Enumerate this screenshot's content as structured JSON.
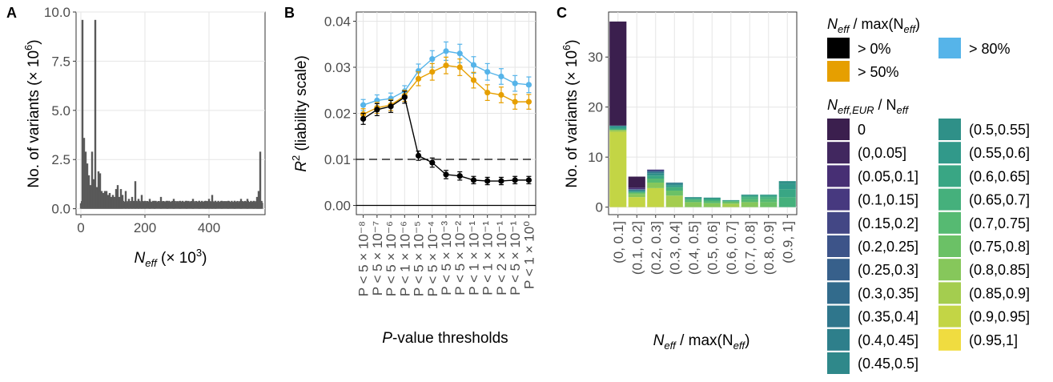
{
  "figure": {
    "panel_labels": [
      "A",
      "B",
      "C"
    ]
  },
  "chart_data": [
    {
      "panel": "A",
      "type": "bar",
      "xlabel_main": "N",
      "xlabel_sub": "eff",
      "xlabel_suffix": " (× 10",
      "xlabel_exp": "3",
      "xlabel_close": ")",
      "ylabel": "No. of variants (× 10",
      "ylabel_exp": "6",
      "ylabel_close": ")",
      "xlim": [
        -15,
        575
      ],
      "ylim": [
        -0.3,
        10.0
      ],
      "x_ticks": [
        0,
        200,
        400
      ],
      "y_ticks": [
        0.0,
        2.5,
        5.0,
        7.5,
        10.0
      ],
      "y_tick_labels": [
        "0.0",
        "2.5",
        "5.0",
        "7.5",
        "10.0"
      ],
      "bar_width": 2.4,
      "color": "#595959",
      "peaks": [
        [
          5,
          9.6
        ],
        [
          10,
          3.6
        ],
        [
          15,
          2.9
        ],
        [
          20,
          2.3
        ],
        [
          25,
          1.7
        ],
        [
          30,
          1.2
        ],
        [
          35,
          2.9
        ],
        [
          40,
          1.5
        ],
        [
          45,
          9.6
        ],
        [
          50,
          1.1
        ],
        [
          55,
          1.9
        ],
        [
          60,
          1.8
        ],
        [
          65,
          0.9
        ],
        [
          70,
          0.8
        ],
        [
          75,
          0.9
        ],
        [
          80,
          0.9
        ],
        [
          85,
          0.7
        ],
        [
          90,
          0.8
        ],
        [
          95,
          0.6
        ],
        [
          100,
          0.7
        ],
        [
          105,
          0.6
        ],
        [
          110,
          1.0
        ],
        [
          115,
          1.2
        ],
        [
          120,
          0.6
        ],
        [
          125,
          1.0
        ],
        [
          130,
          0.7
        ],
        [
          140,
          0.9
        ],
        [
          150,
          0.5
        ],
        [
          160,
          0.6
        ],
        [
          170,
          1.4
        ],
        [
          180,
          0.5
        ],
        [
          190,
          0.7
        ],
        [
          200,
          0.4
        ],
        [
          215,
          0.5
        ],
        [
          230,
          0.4
        ],
        [
          250,
          0.6
        ],
        [
          270,
          0.4
        ],
        [
          290,
          0.5
        ],
        [
          310,
          0.4
        ],
        [
          330,
          0.4
        ],
        [
          350,
          0.5
        ],
        [
          370,
          0.4
        ],
        [
          390,
          0.4
        ],
        [
          400,
          0.5
        ],
        [
          410,
          0.7
        ],
        [
          420,
          0.4
        ],
        [
          440,
          0.4
        ],
        [
          460,
          0.4
        ],
        [
          480,
          0.4
        ],
        [
          500,
          0.5
        ],
        [
          520,
          0.5
        ],
        [
          540,
          0.4
        ],
        [
          550,
          0.6
        ],
        [
          555,
          0.9
        ],
        [
          560,
          2.9
        ],
        [
          566,
          0.3
        ]
      ]
    },
    {
      "panel": "B",
      "type": "line",
      "xlabel_italic": "P",
      "xlabel_rest": "-value thresholds",
      "ylabel_main": "R",
      "ylabel_exp": "2",
      "ylabel_rest": " (liability scale)",
      "ylim": [
        -0.002,
        0.042
      ],
      "y_ticks": [
        0.0,
        0.01,
        0.02,
        0.03,
        0.04
      ],
      "y_tick_labels": [
        "0.00",
        "0.01",
        "0.02",
        "0.03",
        "0.04"
      ],
      "hline": 0.01,
      "categories": [
        "P < 5 × 10⁻⁸",
        "P < 5 × 10⁻⁷",
        "P < 5 × 10⁻⁶",
        "P < 1 × 10⁻⁶",
        "P < 5 × 10⁻⁵",
        "P < 5 × 10⁻⁴",
        "P < 5 × 10⁻³",
        "P < 5 × 10⁻²",
        "P < 1 × 10⁻¹",
        "P < 1 × 10⁻¹",
        "P < 2 × 10⁻¹",
        "P < 5 × 10⁻¹",
        "P < 1 × 10⁰"
      ],
      "series": [
        {
          "color": "#56b4e9",
          "values": [
            0.0218,
            0.0228,
            0.0232,
            0.0248,
            0.0292,
            0.0318,
            0.0335,
            0.033,
            0.0305,
            0.029,
            0.028,
            0.0265,
            0.0262
          ],
          "err": [
            0.0012,
            0.0012,
            0.0012,
            0.0012,
            0.0015,
            0.0018,
            0.002,
            0.002,
            0.0018,
            0.0018,
            0.0017,
            0.0017,
            0.0017
          ]
        },
        {
          "color": "#e69f00",
          "values": [
            0.0198,
            0.0212,
            0.0218,
            0.0238,
            0.0275,
            0.029,
            0.0304,
            0.03,
            0.0272,
            0.0245,
            0.024,
            0.0225,
            0.0225
          ],
          "err": [
            0.0012,
            0.0012,
            0.0012,
            0.0012,
            0.0015,
            0.0018,
            0.0018,
            0.0018,
            0.0017,
            0.0017,
            0.0017,
            0.0016,
            0.0016
          ]
        },
        {
          "color": "#000000",
          "values": [
            0.0188,
            0.0208,
            0.0215,
            0.0235,
            0.0108,
            0.0093,
            0.0067,
            0.0064,
            0.0055,
            0.0053,
            0.0053,
            0.0055,
            0.0055
          ],
          "err": [
            0.0012,
            0.0013,
            0.0013,
            0.0013,
            0.001,
            0.001,
            0.0009,
            0.0009,
            0.0008,
            0.0008,
            0.0008,
            0.0008,
            0.0008
          ]
        }
      ]
    },
    {
      "panel": "C",
      "type": "bar",
      "stacked": true,
      "ylabel": "No. of variants (× 10",
      "ylabel_exp": "6",
      "ylabel_close": ")",
      "xlabel_main": "N",
      "xlabel_sub": "eff",
      "xlabel_rest": " / max(N",
      "xlabel_sub2": "eff",
      "xlabel_close": ")",
      "ylim": [
        -1.5,
        39
      ],
      "y_ticks": [
        0,
        10,
        20,
        30
      ],
      "categories": [
        "(0, 0.1]",
        "(0.1, 0.2]",
        "(0.2, 0.3]",
        "(0.3, 0.4]",
        "(0.4, 0.5]",
        "(0.5, 0.6]",
        "(0.6, 0.7]",
        "(0.7, 0.8]",
        "(0.8, 0.9]",
        "(0.9, 1]"
      ],
      "stacks": [
        [
          {
            "c": 19,
            "v": 15.0
          },
          {
            "c": 18,
            "v": 0.4
          },
          {
            "c": 14,
            "v": 0.3
          },
          {
            "c": 12,
            "v": 0.4
          },
          {
            "c": 10,
            "v": 0.1
          },
          {
            "c": 8,
            "v": 0.1
          },
          {
            "c": 0,
            "v": 20.8
          }
        ],
        [
          {
            "c": 19,
            "v": 2.0
          },
          {
            "c": 17,
            "v": 0.6
          },
          {
            "c": 16,
            "v": 0.3
          },
          {
            "c": 13,
            "v": 0.2
          },
          {
            "c": 11,
            "v": 0.2
          },
          {
            "c": 9,
            "v": 0.1
          },
          {
            "c": 7,
            "v": 0.1
          },
          {
            "c": 5,
            "v": 0.1
          },
          {
            "c": 2,
            "v": 0.3
          },
          {
            "c": 0,
            "v": 2.2
          }
        ],
        [
          {
            "c": 19,
            "v": 3.8
          },
          {
            "c": 17,
            "v": 1.1
          },
          {
            "c": 15,
            "v": 0.8
          },
          {
            "c": 13,
            "v": 0.6
          },
          {
            "c": 11,
            "v": 0.4
          },
          {
            "c": 9,
            "v": 0.3
          },
          {
            "c": 6,
            "v": 0.3
          },
          {
            "c": 3,
            "v": 0.2
          }
        ],
        [
          {
            "c": 18,
            "v": 2.3
          },
          {
            "c": 16,
            "v": 1.0
          },
          {
            "c": 14,
            "v": 0.7
          },
          {
            "c": 12,
            "v": 0.4
          },
          {
            "c": 10,
            "v": 0.3
          },
          {
            "c": 8,
            "v": 0.2
          }
        ],
        [
          {
            "c": 17,
            "v": 1.0
          },
          {
            "c": 15,
            "v": 0.5
          },
          {
            "c": 13,
            "v": 0.3
          },
          {
            "c": 11,
            "v": 0.2
          }
        ],
        [
          {
            "c": 17,
            "v": 0.8
          },
          {
            "c": 15,
            "v": 0.5
          },
          {
            "c": 13,
            "v": 0.4
          },
          {
            "c": 11,
            "v": 0.2
          }
        ],
        [
          {
            "c": 18,
            "v": 0.7
          },
          {
            "c": 16,
            "v": 0.4
          },
          {
            "c": 14,
            "v": 0.2
          },
          {
            "c": 12,
            "v": 0.1
          }
        ],
        [
          {
            "c": 17,
            "v": 1.0
          },
          {
            "c": 15,
            "v": 0.6
          },
          {
            "c": 14,
            "v": 0.4
          },
          {
            "c": 13,
            "v": 0.3
          },
          {
            "c": 11,
            "v": 0.2
          }
        ],
        [
          {
            "c": 16,
            "v": 1.0
          },
          {
            "c": 15,
            "v": 0.6
          },
          {
            "c": 14,
            "v": 0.4
          },
          {
            "c": 13,
            "v": 0.3
          },
          {
            "c": 12,
            "v": 0.2
          }
        ],
        [
          {
            "c": 14,
            "v": 2.0
          },
          {
            "c": 13,
            "v": 1.6
          },
          {
            "c": 12,
            "v": 1.0
          },
          {
            "c": 11,
            "v": 0.6
          }
        ]
      ]
    }
  ],
  "legend1": {
    "title_main": "N",
    "title_sub": "eff",
    "title_rest": " / max(N",
    "title_sub2": "eff",
    "title_close": ")",
    "items": [
      {
        "label": "> 0%",
        "color": "#000000"
      },
      {
        "label": "> 50%",
        "color": "#e69f00"
      },
      {
        "label": "> 80%",
        "color": "#56b4e9"
      }
    ]
  },
  "legend2": {
    "title_main": "N",
    "title_sub": "eff,EUR",
    "title_rest": " / N",
    "title_sub2": "eff",
    "items": [
      {
        "label": "0",
        "color": "#3b1f4e"
      },
      {
        "label": "(0,0.05]",
        "color": "#41275f"
      },
      {
        "label": "(0.05,0.1]",
        "color": "#472f74"
      },
      {
        "label": "(0.1,0.15]",
        "color": "#47397f"
      },
      {
        "label": "(0.15,0.2]",
        "color": "#434785"
      },
      {
        "label": "(0.2,0.25]",
        "color": "#3d5489"
      },
      {
        "label": "(0.25,0.3]",
        "color": "#37608b"
      },
      {
        "label": "(0.3,0.35]",
        "color": "#326b8c"
      },
      {
        "label": "(0.35,0.4]",
        "color": "#2f768c"
      },
      {
        "label": "(0.4,0.45]",
        "color": "#2e7f8b"
      },
      {
        "label": "(0.45,0.5]",
        "color": "#2f888a"
      },
      {
        "label": "(0.5,0.55]",
        "color": "#2f9088"
      },
      {
        "label": "(0.55,0.6]",
        "color": "#31998a"
      },
      {
        "label": "(0.6,0.65]",
        "color": "#39a684"
      },
      {
        "label": "(0.65,0.7]",
        "color": "#45b07c"
      },
      {
        "label": "(0.7,0.75]",
        "color": "#56ba72"
      },
      {
        "label": "(0.75,0.8]",
        "color": "#6bc166"
      },
      {
        "label": "(0.8,0.85]",
        "color": "#86c75b"
      },
      {
        "label": "(0.85,0.9]",
        "color": "#a4cd4f"
      },
      {
        "label": "(0.9,0.95]",
        "color": "#c3d545"
      },
      {
        "label": "(0.95,1]",
        "color": "#f0dc40"
      }
    ]
  }
}
